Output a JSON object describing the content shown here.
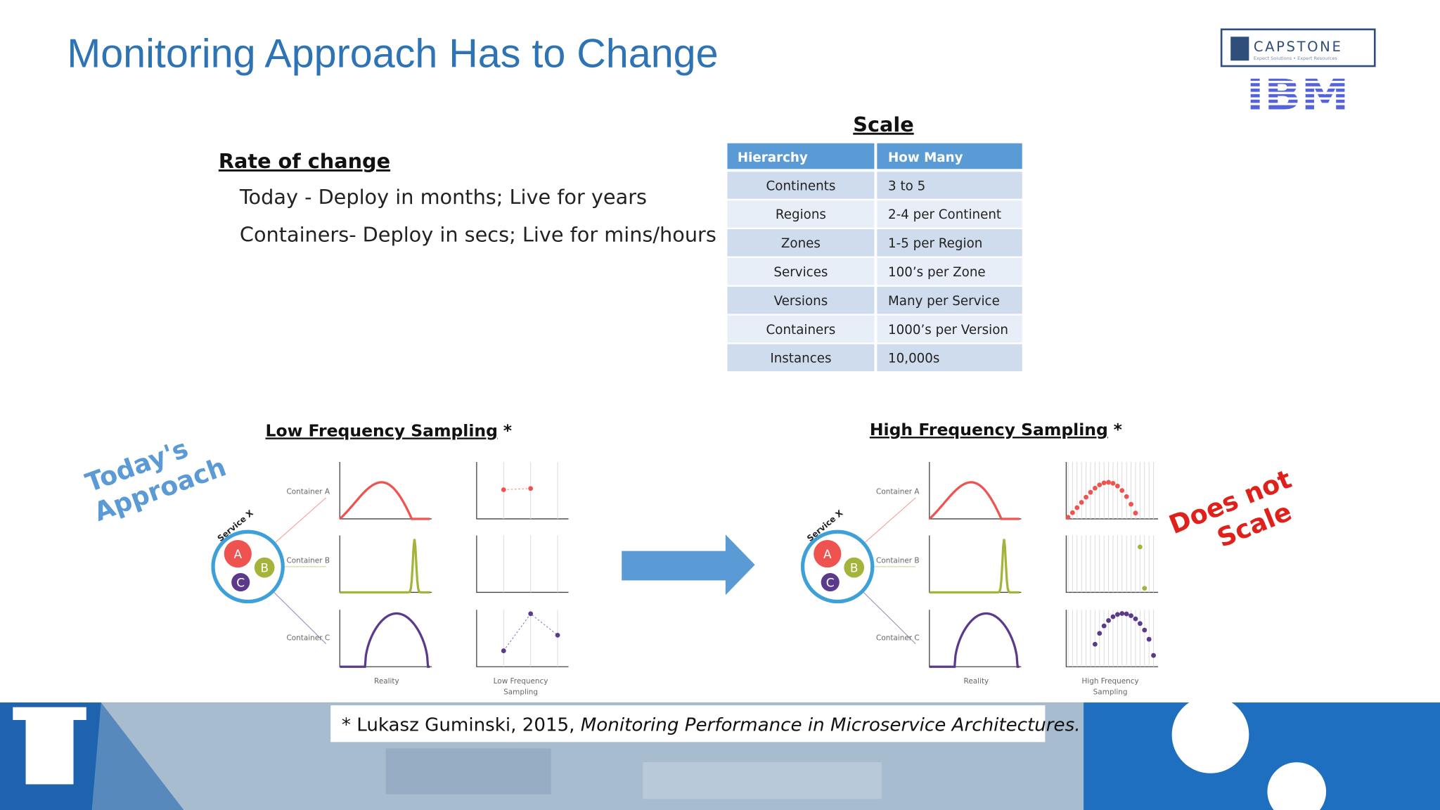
{
  "header": {
    "title": "Monitoring Approach Has to Change",
    "logo": {
      "name": "CAPSTONE",
      "tagline": "Expect Solutions • Expert Resources",
      "partner": "IBM"
    }
  },
  "rate_of_change": {
    "heading": "Rate of change",
    "items": [
      "Today - Deploy in months; Live for years",
      "Containers- Deploy in secs; Live for mins/hours"
    ]
  },
  "scale": {
    "heading": "Scale",
    "table": {
      "columns": [
        "Hierarchy",
        "How Many"
      ],
      "rows": [
        [
          "Continents",
          "3 to 5"
        ],
        [
          "Regions",
          "2-4 per Continent"
        ],
        [
          "Zones",
          "1-5 per Region"
        ],
        [
          "Services",
          "100’s per Zone"
        ],
        [
          "Versions",
          "Many per Service"
        ],
        [
          "Containers",
          "1000’s per Version"
        ],
        [
          "Instances",
          "10,000s"
        ]
      ]
    }
  },
  "low_frequency": {
    "heading": "Low Frequency Sampling",
    "marker": "*",
    "service": "Service X",
    "letters": [
      "A",
      "B",
      "C"
    ],
    "containers": [
      "Container A",
      "Container B",
      "Container C"
    ],
    "reality": "Reality",
    "sampling": [
      "Low Frequency",
      "Sampling"
    ]
  },
  "high_frequency": {
    "heading": "High Frequency Sampling",
    "marker": "*",
    "service": "Service X",
    "letters": [
      "A",
      "B",
      "C"
    ],
    "containers": [
      "Container A",
      "Container B",
      "Container C"
    ],
    "reality": "Reality",
    "sampling": [
      "High Frequency",
      "Sampling"
    ]
  },
  "annotations": {
    "left": [
      "Today's",
      "Approach"
    ],
    "right": [
      "Does not",
      "Scale"
    ]
  },
  "footnote": {
    "text": "* Lukasz Guminski, 2015, ",
    "title": "Monitoring Performance in Microservice Architectures."
  }
}
